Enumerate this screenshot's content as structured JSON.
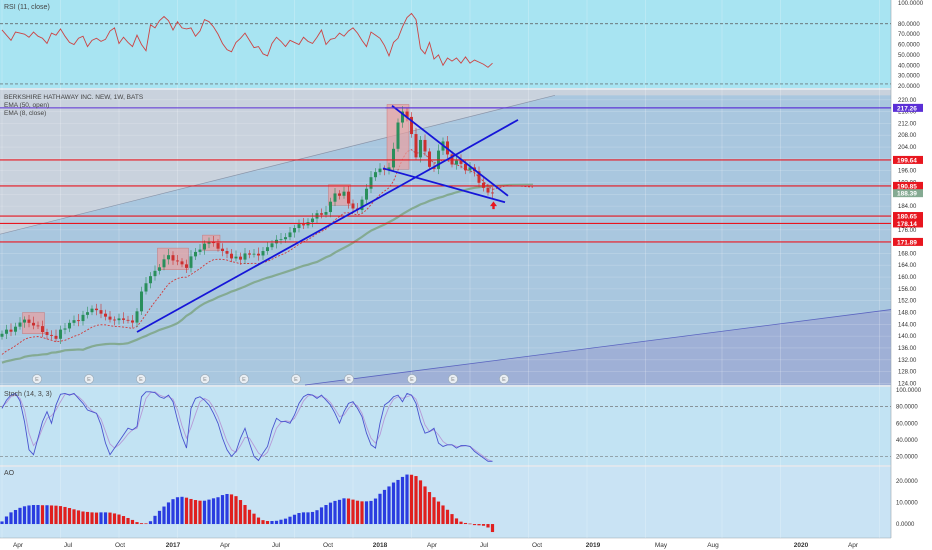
{
  "colors": {
    "rsi_bg": "#a8e4f2",
    "rsi_line": "#cc4444",
    "price_bg": "#a9c7df",
    "price_bg_upper": "#c9d2dd",
    "stoch_bg": "#c2e3f3",
    "ao_bg": "#c9e3f4",
    "hline": "#e8161f",
    "trend": "#1616d8",
    "ema50": "#84aa92",
    "ema8": "#d23a3a",
    "up": "#2a8f5c",
    "down": "#cc3030",
    "ao_up": "#2a3ce0",
    "ao_down": "#e01f1f",
    "stoch_k": "#4a54cf",
    "stoch_d": "#b69ad8",
    "box": "#e9a0a0",
    "axis_bg": "#ffffff"
  },
  "rsi": {
    "label": "RSI (11, close)",
    "ticks": [
      "100.0000",
      "80.0000",
      "70.0000",
      "60.0000",
      "50.0000",
      "40.0000",
      "30.0000",
      "20.0000"
    ],
    "tick_values": [
      100,
      80,
      70,
      60,
      50,
      40,
      30,
      20
    ],
    "ylim": [
      20,
      100
    ],
    "band": [
      22,
      80
    ],
    "series": [
      74,
      69,
      64,
      72,
      71,
      70,
      67,
      72,
      68,
      66,
      61,
      71,
      69,
      75,
      68,
      62,
      60,
      66,
      68,
      58,
      64,
      66,
      63,
      65,
      73,
      76,
      61,
      67,
      62,
      58,
      69,
      60,
      54,
      79,
      76,
      83,
      87,
      83,
      74,
      82,
      76,
      75,
      76,
      68,
      73,
      84,
      82,
      77,
      70,
      61,
      55,
      53,
      62,
      66,
      71,
      64,
      57,
      58,
      51,
      49,
      61,
      67,
      63,
      58,
      64,
      62,
      60,
      67,
      63,
      61,
      67,
      74,
      60,
      65,
      66,
      71,
      68,
      73,
      76,
      71,
      64,
      58,
      72,
      69,
      66,
      59,
      49,
      62,
      66,
      77,
      86,
      90,
      84,
      56,
      51,
      62,
      46,
      50,
      40,
      47,
      44,
      47,
      42,
      48,
      42,
      45,
      43,
      41,
      38,
      42
    ]
  },
  "price": {
    "title_lines": [
      "BERKSHIRE HATHAWAY INC. NEW, 1W, BATS",
      "EMA (50, open)",
      "EMA (8, close)"
    ],
    "ticks": [
      "220.00",
      "216.00",
      "212.00",
      "208.00",
      "204.00",
      "200.00",
      "196.00",
      "192.00",
      "188.00",
      "184.00",
      "180.00",
      "176.00",
      "172.00",
      "168.00",
      "164.00",
      "160.00",
      "156.00",
      "152.00",
      "148.00",
      "144.00",
      "140.00",
      "136.00",
      "132.00",
      "128.00",
      "124.00"
    ],
    "tick_values": [
      220,
      216,
      212,
      208,
      204,
      200,
      196,
      192,
      188,
      184,
      180,
      176,
      172,
      168,
      164,
      160,
      156,
      152,
      148,
      144,
      140,
      136,
      132,
      128,
      124
    ],
    "ylim": [
      123.8,
      220.6
    ],
    "levels": [
      {
        "value": 217.26,
        "label": "217.26",
        "color": "#5b2fd6"
      },
      {
        "value": 199.64,
        "label": "199.64",
        "color": "#e8161f"
      },
      {
        "value": 190.85,
        "label": "190.85",
        "color": "#e8161f"
      },
      {
        "value": 180.65,
        "label": "180.65",
        "color": "#e8161f"
      },
      {
        "value": 178.14,
        "label": "178.14",
        "color": "#e8161f"
      },
      {
        "value": 171.89,
        "label": "171.89",
        "color": "#e8161f"
      }
    ],
    "last": {
      "value": 188.39,
      "label": "188.39"
    },
    "earnings_label": "E",
    "closes": [
      140.8,
      142.2,
      141.5,
      143.2,
      144.6,
      145.6,
      144.5,
      143.6,
      143.4,
      141.4,
      140.4,
      140.1,
      139.1,
      142.2,
      142.6,
      144.5,
      145.4,
      145.1,
      147.2,
      148.1,
      149.3,
      148.8,
      147.6,
      146.6,
      145.6,
      145.4,
      146.0,
      145.5,
      145.3,
      144.6,
      148.4,
      155.1,
      157.9,
      160.3,
      162.1,
      163.3,
      166.0,
      167.4,
      165.6,
      165.3,
      164.3,
      163.1,
      167.0,
      168.5,
      169.3,
      171.3,
      171.8,
      171.5,
      169.6,
      168.8,
      167.9,
      166.3,
      166.9,
      165.9,
      168.0,
      167.6,
      167.9,
      167.3,
      168.8,
      170.1,
      171.4,
      172.6,
      172.8,
      173.5,
      175.1,
      176.6,
      177.9,
      177.5,
      178.6,
      179.8,
      181.6,
      181.1,
      182.0,
      185.5,
      188.3,
      187.5,
      188.9,
      184.9,
      183.2,
      182.7,
      186.2,
      189.9,
      193.8,
      195.5,
      196.7,
      196.2,
      197.1,
      203.4,
      212.3,
      216.0,
      214.2,
      208.4,
      200.5,
      206.4,
      202.5,
      197.3,
      196.6,
      202.8,
      205.9,
      201.5,
      198.1,
      199.4,
      198.3,
      196.1,
      197.1,
      195.8,
      191.9,
      190.2,
      188.6,
      188.4
    ],
    "ema50": [
      131.0,
      131.5,
      131.8,
      132.2,
      132.4,
      133.0,
      133.3,
      133.5,
      133.6,
      133.8,
      133.9,
      134.4,
      134.5,
      134.8,
      135.2,
      135.3,
      135.4,
      135.5,
      135.4,
      136.0,
      136.5,
      136.9,
      137.1,
      137.3,
      137.4,
      137.4,
      137.3,
      137.4,
      137.6,
      138.2,
      138.8,
      139.5,
      140.1,
      140.8,
      141.4,
      142.1,
      142.6,
      143.1,
      143.7,
      144.4,
      145.5,
      146.9,
      147.8,
      149.1,
      150.2,
      151.1,
      151.8,
      152.4,
      153.2,
      153.8,
      154.4,
      155.1,
      155.6,
      156.2,
      156.8,
      157.5,
      158.2,
      158.7,
      159.3,
      159.8,
      160.2,
      160.7,
      161.2,
      161.7,
      162.2,
      162.7,
      163.3,
      163.8,
      164.2,
      164.7,
      165.1,
      165.9,
      166.7,
      167.3,
      168.3,
      169.1,
      169.9,
      170.7,
      171.6,
      172.6,
      173.6,
      174.7,
      175.7,
      176.4,
      177.1,
      177.8,
      178.6,
      179.4,
      180.3,
      181.3,
      182.2,
      183.1,
      183.8,
      184.6,
      185.1,
      185.8,
      186.3,
      186.8,
      187.2,
      187.8,
      188.2,
      188.7,
      189.1,
      189.5,
      189.9,
      190.2,
      190.4,
      190.6,
      190.8,
      190.9
    ],
    "ema8_tail": [
      190.9,
      190.8,
      190.4
    ]
  },
  "stoch": {
    "label": "Stoch (14, 3, 3)",
    "ticks": [
      "100.0000",
      "80.0000",
      "60.0000",
      "40.0000",
      "20.0000"
    ],
    "tick_values": [
      100,
      80,
      60,
      40,
      20
    ],
    "ylim": [
      12,
      105
    ],
    "band": [
      20,
      80
    ],
    "k": [
      78,
      88,
      94,
      96,
      87,
      62,
      28,
      22,
      42,
      62,
      74,
      60,
      82,
      95,
      96,
      94,
      96,
      90,
      84,
      76,
      74,
      72,
      58,
      36,
      22,
      30,
      38,
      46,
      54,
      52,
      56,
      92,
      98,
      98,
      97,
      92,
      90,
      94,
      86,
      64,
      44,
      30,
      78,
      90,
      92,
      88,
      82,
      72,
      60,
      42,
      28,
      20,
      26,
      42,
      54,
      36,
      20,
      15,
      24,
      32,
      52,
      66,
      62,
      62,
      60,
      70,
      84,
      92,
      95,
      94,
      90,
      94,
      88,
      82,
      72,
      60,
      74,
      84,
      86,
      78,
      68,
      48,
      34,
      30,
      60,
      82,
      86,
      92,
      94,
      86,
      96,
      94,
      84,
      62,
      48,
      50,
      54,
      36,
      32,
      34,
      34,
      30,
      33,
      33,
      32,
      26,
      22,
      18,
      14,
      14
    ],
    "d": [
      80,
      85,
      92,
      94,
      90,
      76,
      48,
      33,
      40,
      54,
      66,
      69,
      76,
      86,
      95,
      95,
      95,
      92,
      87,
      80,
      75,
      72,
      65,
      50,
      35,
      30,
      34,
      40,
      47,
      52,
      54,
      72,
      90,
      97,
      98,
      94,
      92,
      92,
      89,
      76,
      57,
      42,
      55,
      71,
      86,
      90,
      87,
      79,
      68,
      53,
      38,
      28,
      25,
      33,
      43,
      42,
      33,
      24,
      20,
      25,
      39,
      54,
      61,
      63,
      62,
      66,
      76,
      87,
      93,
      94,
      92,
      92,
      90,
      85,
      77,
      68,
      70,
      78,
      84,
      81,
      72,
      56,
      42,
      36,
      46,
      66,
      80,
      89,
      92,
      90,
      92,
      94,
      89,
      74,
      58,
      50,
      52,
      46,
      38,
      34,
      34,
      32,
      32,
      33,
      32,
      28,
      24,
      20,
      16,
      14
    ]
  },
  "ao": {
    "label": "AO",
    "ticks": [
      "20.0000",
      "10.0000",
      "0.0000"
    ],
    "tick_values": [
      20,
      10,
      0
    ],
    "ylim": [
      -6,
      25
    ],
    "values": [
      1.2,
      3.5,
      5.4,
      6.5,
      7.5,
      8.2,
      8.6,
      8.8,
      8.8,
      8.7,
      8.7,
      8.6,
      8.5,
      8.3,
      7.9,
      7.4,
      6.8,
      6.3,
      5.8,
      5.6,
      5.4,
      5.3,
      5.4,
      5.4,
      5.3,
      4.9,
      4.4,
      3.7,
      2.8,
      1.9,
      0.9,
      0.4,
      0.3,
      1.3,
      3.8,
      6.1,
      8.1,
      10.0,
      11.5,
      12.4,
      12.6,
      12.2,
      11.6,
      11.1,
      10.8,
      10.8,
      11.3,
      11.9,
      12.4,
      13.4,
      13.9,
      13.7,
      12.9,
      11.1,
      8.8,
      6.6,
      4.8,
      3.0,
      1.8,
      1.4,
      1.4,
      1.5,
      2.0,
      2.5,
      3.4,
      4.3,
      5.1,
      5.4,
      5.4,
      5.6,
      6.4,
      7.7,
      8.8,
      9.9,
      10.7,
      11.2,
      11.9,
      11.8,
      11.3,
      10.8,
      10.5,
      10.5,
      10.7,
      11.8,
      14.0,
      15.8,
      17.4,
      19.2,
      20.4,
      21.8,
      22.9,
      22.8,
      22.2,
      20.2,
      17.4,
      14.8,
      12.4,
      10.4,
      8.6,
      6.6,
      4.6,
      2.6,
      1.1,
      0.5,
      0.2,
      -0.5,
      -0.6,
      -0.8,
      -1.6,
      -3.7
    ]
  },
  "x_axis": {
    "labels": [
      "Apr",
      "Jul",
      "Oct",
      "2017",
      "Apr",
      "Jul",
      "Oct",
      "2018",
      "Apr",
      "Jul",
      "Oct",
      "2019",
      "May",
      "Aug",
      "2020",
      "Apr"
    ],
    "bold": [
      false,
      false,
      false,
      true,
      false,
      false,
      false,
      true,
      false,
      false,
      false,
      true,
      false,
      false,
      true,
      false
    ],
    "bar_index": [
      0,
      13,
      26,
      39,
      52,
      65,
      78,
      91,
      104,
      117,
      130,
      143,
      160,
      173,
      195,
      208
    ]
  },
  "annotations": {
    "trendlines": "blue wedge / triangle drawn on price",
    "arrow": "red up arrow below last candle"
  }
}
